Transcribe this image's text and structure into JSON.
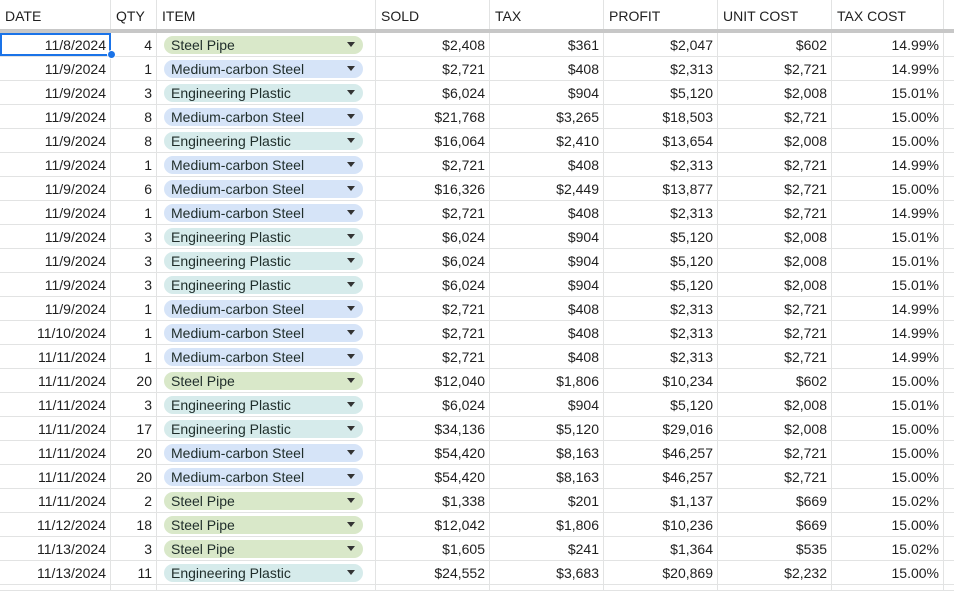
{
  "columns": [
    "DATE",
    "QTY",
    "ITEM",
    "SOLD",
    "TAX",
    "PROFIT",
    "UNIT COST",
    "TAX COST"
  ],
  "item_colors": {
    "Steel Pipe": "#d9e8c9",
    "Medium-carbon Steel": "#d6e4f8",
    "Engineering Plastic": "#d6ebeb"
  },
  "selection_color": "#1a73e8",
  "rows": [
    {
      "date": "11/8/2024",
      "qty": "4",
      "item": "Steel Pipe",
      "sold": "$2,408",
      "tax": "$361",
      "profit": "$2,047",
      "unit_cost": "$602",
      "tax_cost": "14.99%"
    },
    {
      "date": "11/9/2024",
      "qty": "1",
      "item": "Medium-carbon Steel",
      "sold": "$2,721",
      "tax": "$408",
      "profit": "$2,313",
      "unit_cost": "$2,721",
      "tax_cost": "14.99%"
    },
    {
      "date": "11/9/2024",
      "qty": "3",
      "item": "Engineering Plastic",
      "sold": "$6,024",
      "tax": "$904",
      "profit": "$5,120",
      "unit_cost": "$2,008",
      "tax_cost": "15.01%"
    },
    {
      "date": "11/9/2024",
      "qty": "8",
      "item": "Medium-carbon Steel",
      "sold": "$21,768",
      "tax": "$3,265",
      "profit": "$18,503",
      "unit_cost": "$2,721",
      "tax_cost": "15.00%"
    },
    {
      "date": "11/9/2024",
      "qty": "8",
      "item": "Engineering Plastic",
      "sold": "$16,064",
      "tax": "$2,410",
      "profit": "$13,654",
      "unit_cost": "$2,008",
      "tax_cost": "15.00%"
    },
    {
      "date": "11/9/2024",
      "qty": "1",
      "item": "Medium-carbon Steel",
      "sold": "$2,721",
      "tax": "$408",
      "profit": "$2,313",
      "unit_cost": "$2,721",
      "tax_cost": "14.99%"
    },
    {
      "date": "11/9/2024",
      "qty": "6",
      "item": "Medium-carbon Steel",
      "sold": "$16,326",
      "tax": "$2,449",
      "profit": "$13,877",
      "unit_cost": "$2,721",
      "tax_cost": "15.00%"
    },
    {
      "date": "11/9/2024",
      "qty": "1",
      "item": "Medium-carbon Steel",
      "sold": "$2,721",
      "tax": "$408",
      "profit": "$2,313",
      "unit_cost": "$2,721",
      "tax_cost": "14.99%"
    },
    {
      "date": "11/9/2024",
      "qty": "3",
      "item": "Engineering Plastic",
      "sold": "$6,024",
      "tax": "$904",
      "profit": "$5,120",
      "unit_cost": "$2,008",
      "tax_cost": "15.01%"
    },
    {
      "date": "11/9/2024",
      "qty": "3",
      "item": "Engineering Plastic",
      "sold": "$6,024",
      "tax": "$904",
      "profit": "$5,120",
      "unit_cost": "$2,008",
      "tax_cost": "15.01%"
    },
    {
      "date": "11/9/2024",
      "qty": "3",
      "item": "Engineering Plastic",
      "sold": "$6,024",
      "tax": "$904",
      "profit": "$5,120",
      "unit_cost": "$2,008",
      "tax_cost": "15.01%"
    },
    {
      "date": "11/9/2024",
      "qty": "1",
      "item": "Medium-carbon Steel",
      "sold": "$2,721",
      "tax": "$408",
      "profit": "$2,313",
      "unit_cost": "$2,721",
      "tax_cost": "14.99%"
    },
    {
      "date": "11/10/2024",
      "qty": "1",
      "item": "Medium-carbon Steel",
      "sold": "$2,721",
      "tax": "$408",
      "profit": "$2,313",
      "unit_cost": "$2,721",
      "tax_cost": "14.99%"
    },
    {
      "date": "11/11/2024",
      "qty": "1",
      "item": "Medium-carbon Steel",
      "sold": "$2,721",
      "tax": "$408",
      "profit": "$2,313",
      "unit_cost": "$2,721",
      "tax_cost": "14.99%"
    },
    {
      "date": "11/11/2024",
      "qty": "20",
      "item": "Steel Pipe",
      "sold": "$12,040",
      "tax": "$1,806",
      "profit": "$10,234",
      "unit_cost": "$602",
      "tax_cost": "15.00%"
    },
    {
      "date": "11/11/2024",
      "qty": "3",
      "item": "Engineering Plastic",
      "sold": "$6,024",
      "tax": "$904",
      "profit": "$5,120",
      "unit_cost": "$2,008",
      "tax_cost": "15.01%"
    },
    {
      "date": "11/11/2024",
      "qty": "17",
      "item": "Engineering Plastic",
      "sold": "$34,136",
      "tax": "$5,120",
      "profit": "$29,016",
      "unit_cost": "$2,008",
      "tax_cost": "15.00%"
    },
    {
      "date": "11/11/2024",
      "qty": "20",
      "item": "Medium-carbon Steel",
      "sold": "$54,420",
      "tax": "$8,163",
      "profit": "$46,257",
      "unit_cost": "$2,721",
      "tax_cost": "15.00%"
    },
    {
      "date": "11/11/2024",
      "qty": "20",
      "item": "Medium-carbon Steel",
      "sold": "$54,420",
      "tax": "$8,163",
      "profit": "$46,257",
      "unit_cost": "$2,721",
      "tax_cost": "15.00%"
    },
    {
      "date": "11/11/2024",
      "qty": "2",
      "item": "Steel Pipe",
      "sold": "$1,338",
      "tax": "$201",
      "profit": "$1,137",
      "unit_cost": "$669",
      "tax_cost": "15.02%"
    },
    {
      "date": "11/12/2024",
      "qty": "18",
      "item": "Steel Pipe",
      "sold": "$12,042",
      "tax": "$1,806",
      "profit": "$10,236",
      "unit_cost": "$669",
      "tax_cost": "15.00%"
    },
    {
      "date": "11/13/2024",
      "qty": "3",
      "item": "Steel Pipe",
      "sold": "$1,605",
      "tax": "$241",
      "profit": "$1,364",
      "unit_cost": "$535",
      "tax_cost": "15.02%"
    },
    {
      "date": "11/13/2024",
      "qty": "11",
      "item": "Engineering Plastic",
      "sold": "$24,552",
      "tax": "$3,683",
      "profit": "$20,869",
      "unit_cost": "$2,232",
      "tax_cost": "15.00%"
    }
  ]
}
